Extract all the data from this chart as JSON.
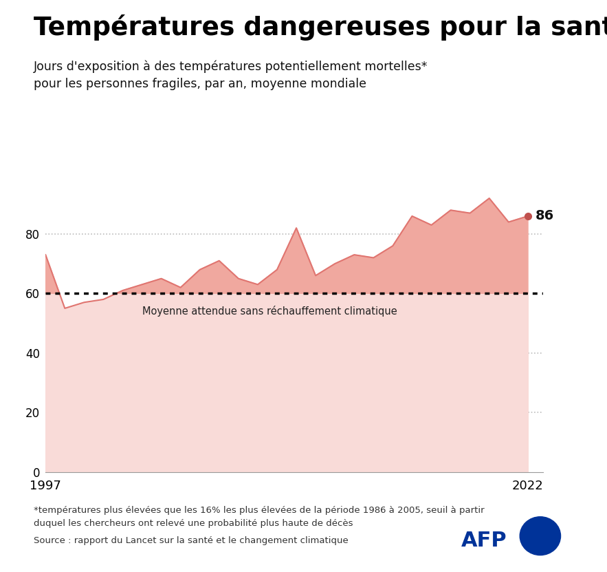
{
  "title": "Températures dangereuses pour la santé",
  "subtitle": "Jours d'exposition à des températures potentiellement mortelles*\npour les personnes fragiles, par an, moyenne mondiale",
  "years": [
    1997,
    1998,
    1999,
    2000,
    2001,
    2002,
    2003,
    2004,
    2005,
    2006,
    2007,
    2008,
    2009,
    2010,
    2011,
    2012,
    2013,
    2014,
    2015,
    2016,
    2017,
    2018,
    2019,
    2020,
    2021,
    2022
  ],
  "values": [
    73,
    55,
    57,
    58,
    61,
    63,
    65,
    62,
    68,
    71,
    65,
    63,
    68,
    82,
    66,
    70,
    73,
    72,
    76,
    86,
    83,
    88,
    87,
    92,
    84,
    86
  ],
  "baseline": 60,
  "area_color_light": "#f9dbd8",
  "area_color_dark": "#f0a89f",
  "line_color": "#e07570",
  "baseline_color": "#000000",
  "dot_color": "#c0504d",
  "last_value": 86,
  "last_year": 2022,
  "annotation_label": "Moyenne attendue sans réchauffement climatique",
  "footnote1": "*températures plus élevées que les 16% les plus élevées de la période 1986 à 2005, seuil à partir",
  "footnote2": "duquel les chercheurs ont relevé une probabilité plus haute de décès",
  "source": "Source : rapport du Lancet sur la santé et le changement climatique",
  "ylim_max": 100,
  "ylim_min": 0,
  "yticks": [
    0,
    20,
    40,
    60,
    80
  ],
  "grid_color": "#bbbbbb",
  "bg_color": "#ffffff",
  "afp_blue": "#003399"
}
